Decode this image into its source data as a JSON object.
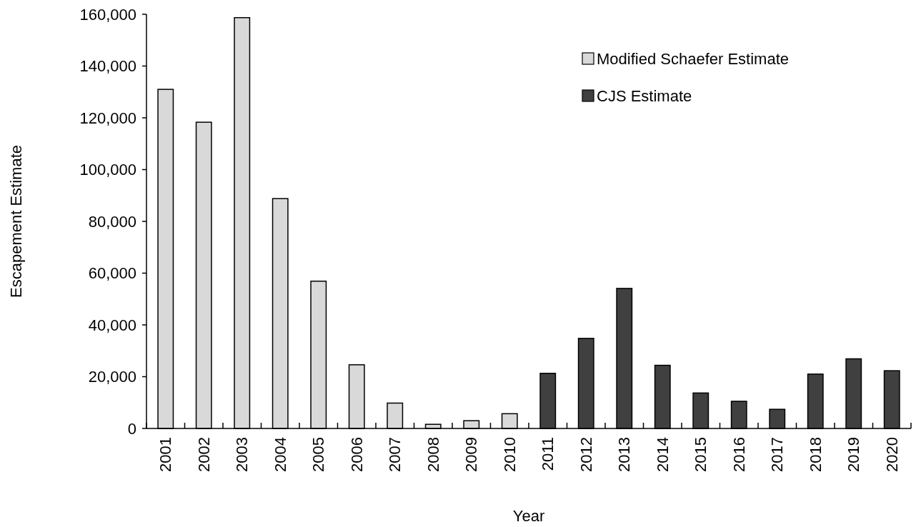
{
  "chart_data": {
    "type": "bar",
    "xlabel": "Year",
    "ylabel": "Escapement Estimate",
    "categories": [
      "2001",
      "2002",
      "2003",
      "2004",
      "2005",
      "2006",
      "2007",
      "2008",
      "2009",
      "2010",
      "2011",
      "2012",
      "2013",
      "2014",
      "2015",
      "2016",
      "2017",
      "2018",
      "2019",
      "2020"
    ],
    "series": [
      {
        "name": "Modified Schaefer Estimate",
        "color": "#d9d9d9",
        "values": [
          131000,
          118300,
          158700,
          88800,
          56900,
          24600,
          9800,
          1600,
          3000,
          5700,
          null,
          null,
          null,
          null,
          null,
          null,
          null,
          null,
          null,
          null
        ]
      },
      {
        "name": "CJS Estimate",
        "color": "#404040",
        "values": [
          null,
          null,
          null,
          null,
          null,
          null,
          null,
          null,
          null,
          null,
          21300,
          34800,
          54100,
          24400,
          13700,
          10500,
          7400,
          21000,
          26900,
          22300
        ]
      }
    ],
    "ylim": [
      0,
      160000
    ],
    "yticks": [
      {
        "value": 0,
        "label": "0"
      },
      {
        "value": 20000,
        "label": "20,000"
      },
      {
        "value": 40000,
        "label": "40,000"
      },
      {
        "value": 60000,
        "label": "60,000"
      },
      {
        "value": 80000,
        "label": "80,000"
      },
      {
        "value": 100000,
        "label": "100,000"
      },
      {
        "value": 120000,
        "label": "120,000"
      },
      {
        "value": 140000,
        "label": "140,000"
      },
      {
        "value": 160000,
        "label": "160,000"
      }
    ],
    "grid": false,
    "legend": "top right"
  }
}
